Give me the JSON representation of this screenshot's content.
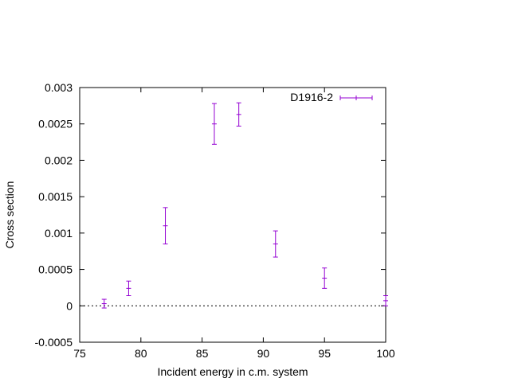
{
  "chart_data": {
    "type": "scatter",
    "xlabel": "Incident energy in c.m. system",
    "ylabel": "Cross section",
    "xlim": [
      75,
      100
    ],
    "ylim": [
      -0.0005,
      0.003
    ],
    "x_ticks": [
      75,
      80,
      85,
      90,
      95,
      100
    ],
    "y_ticks": [
      -0.0005,
      0,
      0.0005,
      0.001,
      0.0015,
      0.002,
      0.0025,
      0.003
    ],
    "x_tick_labels": [
      "75",
      "80",
      "85",
      "90",
      "95",
      "100"
    ],
    "y_tick_labels": [
      "-0.0005",
      "0",
      "0.0005",
      "0.001",
      "0.0015",
      "0.002",
      "0.0025",
      "0.003"
    ],
    "zero_line": true,
    "grid": false,
    "legend_position": "top-right",
    "series": [
      {
        "name": "D1916-2",
        "color": "#9400d3",
        "points": [
          {
            "x": 77,
            "y": 3e-05,
            "err": 6e-05
          },
          {
            "x": 79,
            "y": 0.00024,
            "err": 0.0001
          },
          {
            "x": 82,
            "y": 0.0011,
            "err": 0.00025
          },
          {
            "x": 86,
            "y": 0.0025,
            "err": 0.00028
          },
          {
            "x": 88,
            "y": 0.00263,
            "err": 0.00016
          },
          {
            "x": 91,
            "y": 0.00085,
            "err": 0.00018
          },
          {
            "x": 95,
            "y": 0.00038,
            "err": 0.00014
          },
          {
            "x": 100,
            "y": 7e-05,
            "err": 7e-05
          }
        ]
      }
    ]
  }
}
